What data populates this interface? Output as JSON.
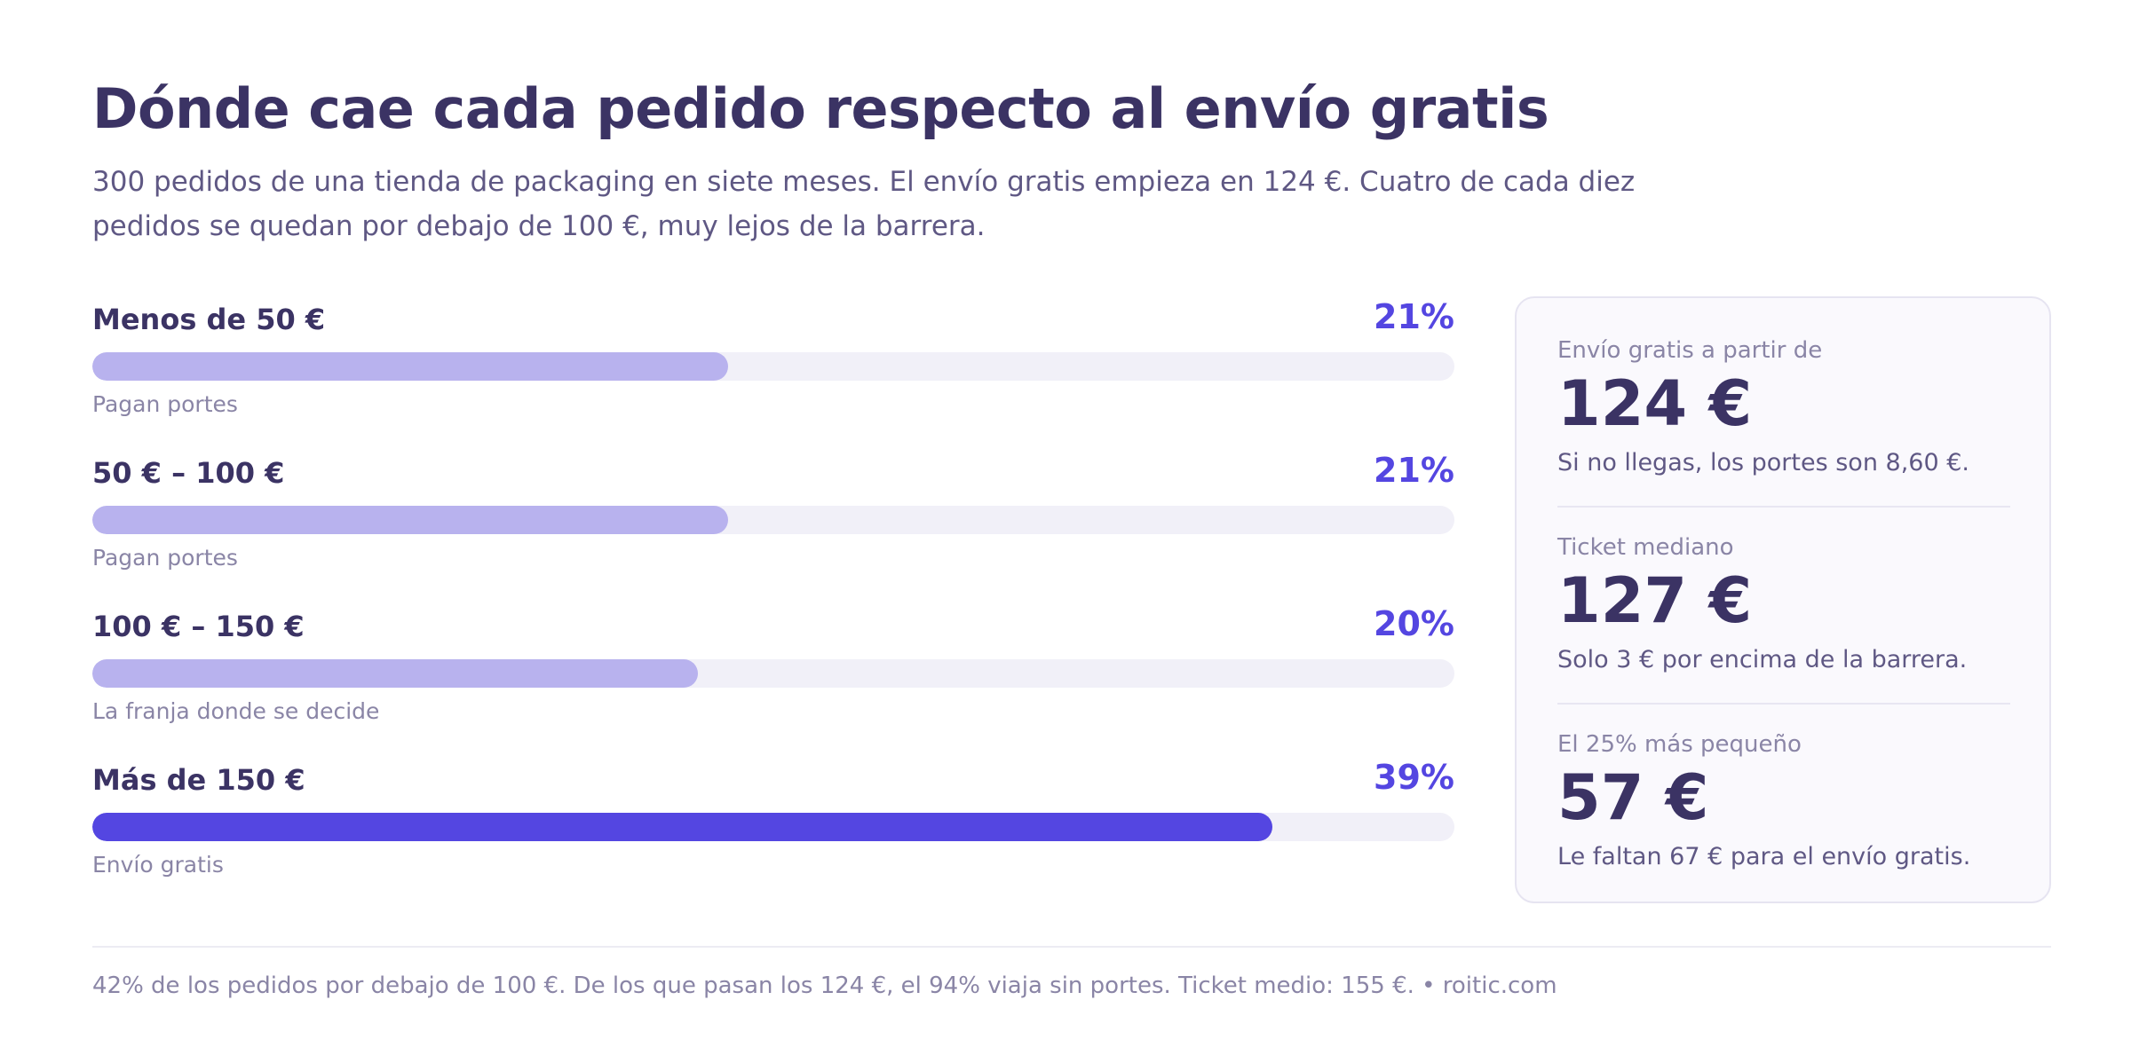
{
  "header": {
    "title": "Dónde cae cada pedido respecto al envío gratis",
    "subtitle": "300 pedidos de una tienda de packaging en siete meses. El envío gratis empieza en 124 €. Cuatro de cada diez pedidos se quedan por debajo de 100 €, muy lejos de la barrera."
  },
  "colors": {
    "accent": "#5446e1",
    "bar_light": "#b8b2ee",
    "track": "#f1f0f8",
    "text_dark": "#3b3364"
  },
  "chart_data": {
    "type": "bar",
    "orientation": "horizontal",
    "categories": [
      "Menos de 50 €",
      "50 € – 100 €",
      "100 € – 150 €",
      "Más de 150 €"
    ],
    "values": [
      21,
      21,
      20,
      39
    ],
    "value_labels": [
      "21%",
      "21%",
      "20%",
      "39%"
    ],
    "notes": [
      "Pagan portes",
      "Pagan portes",
      "La franja donde se decide",
      "Envío gratis"
    ],
    "highlight": [
      false,
      false,
      false,
      true
    ],
    "xlim": [
      0,
      45
    ],
    "unit": "%"
  },
  "panel": {
    "stats": [
      {
        "label": "Envío gratis a partir de",
        "value": "124 €",
        "note": "Si no llegas, los portes son 8,60 €."
      },
      {
        "label": "Ticket mediano",
        "value": "127 €",
        "note": "Solo 3 € por encima de la barrera."
      },
      {
        "label": "El 25% más pequeño",
        "value": "57 €",
        "note": "Le faltan 67 € para el envío gratis."
      }
    ]
  },
  "footer": {
    "text": "42% de los pedidos por debajo de 100 €. De los que pasan los 124 €, el 94% viaja sin portes. Ticket medio: 155 €. • roitic.com"
  }
}
